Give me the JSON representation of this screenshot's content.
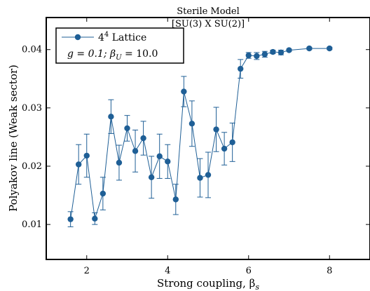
{
  "chart_data": {
    "type": "line",
    "title": "Sterile Model",
    "subtitle": "[SU(3) X SU(2)]",
    "xlabel": "Strong coupling, β",
    "xlabel_sub": "s",
    "ylabel": "Polyakov line (Weak sector)",
    "xlim": [
      1.0,
      9.0
    ],
    "ylim": [
      0.004,
      0.0455
    ],
    "xticks": [
      2,
      4,
      6,
      8
    ],
    "yticks": [
      0.01,
      0.02,
      0.03,
      0.04
    ],
    "grid": false,
    "legend_position": "top-left",
    "color": "#1f5f96",
    "legend": {
      "label_base": "4",
      "label_sup": "4",
      "label_rest": " Lattice",
      "params": "g = 0.1;  β",
      "params_sub": "U",
      "params_rest": " = 10.0"
    },
    "series": [
      {
        "x": [
          1.6,
          1.8,
          2.0,
          2.2,
          2.4,
          2.6,
          2.8,
          3.0,
          3.2,
          3.4,
          3.6,
          3.8,
          4.0,
          4.2,
          4.4,
          4.6,
          4.8,
          5.0,
          5.2,
          5.4,
          5.6,
          5.8,
          6.0,
          6.2,
          6.4,
          6.6,
          6.8,
          7.0,
          7.5,
          8.0
        ],
        "y": [
          0.0109,
          0.0203,
          0.0218,
          0.011,
          0.0153,
          0.0285,
          0.0206,
          0.0265,
          0.0226,
          0.0248,
          0.0181,
          0.0217,
          0.0208,
          0.0143,
          0.0328,
          0.0273,
          0.018,
          0.0185,
          0.0263,
          0.023,
          0.0241,
          0.0367,
          0.039,
          0.0389,
          0.0392,
          0.0396,
          0.0395,
          0.0399,
          0.0402,
          0.0402
        ],
        "err": [
          0.0013,
          0.0034,
          0.0037,
          0.001,
          0.0028,
          0.0029,
          0.003,
          0.0022,
          0.0036,
          0.0029,
          0.0036,
          0.0038,
          0.0029,
          0.0026,
          0.0026,
          0.0039,
          0.0033,
          0.0039,
          0.0038,
          0.0028,
          0.0033,
          0.0016,
          0.0005,
          0.0006,
          0.0005,
          0.0003,
          0.0004,
          0.0002,
          0.0002,
          0.0002
        ]
      }
    ]
  }
}
